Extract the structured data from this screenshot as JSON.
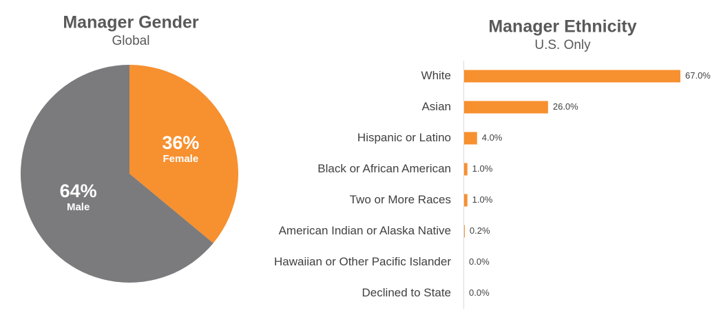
{
  "chart_data": [
    {
      "type": "pie",
      "title": "Manager Gender",
      "subtitle": "Global",
      "categories": [
        "Female",
        "Male"
      ],
      "values": [
        36,
        64
      ],
      "value_labels": [
        "36%",
        "64%"
      ],
      "colors": [
        "#f7902f",
        "#7b7b7d"
      ]
    },
    {
      "type": "bar",
      "orientation": "horizontal",
      "title": "Manager Ethnicity",
      "subtitle": "U.S. Only",
      "categories": [
        "White",
        "Asian",
        "Hispanic or Latino",
        "Black or African American",
        "Two or More Races",
        "American Indian or Alaska Native",
        "Hawaiian or Other Pacific Islander",
        "Declined to State"
      ],
      "values": [
        67,
        26,
        4,
        1,
        1,
        0.2,
        0,
        0
      ],
      "value_labels": [
        "67.0%",
        "26.0%",
        "4.0%",
        "1.0%",
        "1.0%",
        "0.2%",
        "0.0%",
        "0.0%"
      ],
      "color": "#f7902f"
    }
  ]
}
